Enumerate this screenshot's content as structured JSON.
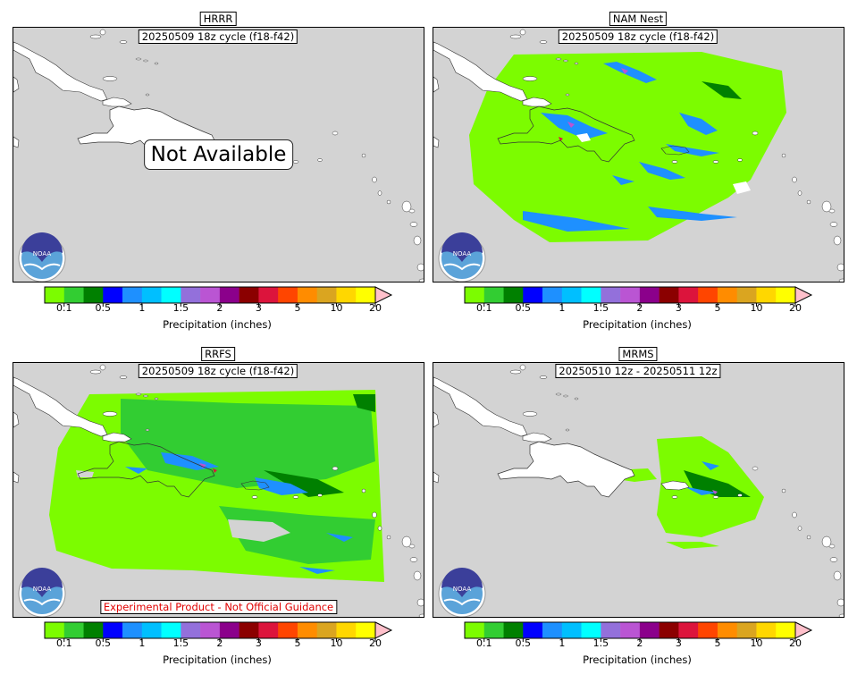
{
  "panels": [
    {
      "id": "hrrr",
      "title": "HRRR",
      "subtitle": "20250509 18z cycle (f18-f42)",
      "available": false,
      "overlay": "Not Available",
      "coverage": "none"
    },
    {
      "id": "namnest",
      "title": "NAM Nest",
      "subtitle": "20250509 18z cycle (f18-f42)",
      "available": true,
      "overlay": "",
      "coverage": "nam"
    },
    {
      "id": "rrfs",
      "title": "RRFS",
      "subtitle": "20250509 18z cycle (f18-f42)",
      "available": true,
      "overlay": "",
      "coverage": "rrfs",
      "disclaimer": "Experimental Product - Not Official Guidance"
    },
    {
      "id": "mrms",
      "title": "MRMS",
      "subtitle": "20250510 12z - 20250511 12z",
      "available": true,
      "overlay": "",
      "coverage": "mrms"
    }
  ],
  "colorbar": {
    "label": "Precipitation (inches)",
    "colors": [
      "#7cfc00",
      "#32cd32",
      "#008000",
      "#0000ff",
      "#1e90ff",
      "#00bfff",
      "#00ffff",
      "#9370db",
      "#ba55d3",
      "#8b008b",
      "#8b0000",
      "#dc143c",
      "#ff4500",
      "#ff8c00",
      "#daa520",
      "#ffd700",
      "#ffff00"
    ],
    "extend_color": "#ffc0cb",
    "tick_labels": [
      "0.1",
      "0.5",
      "1",
      "1.5",
      "2",
      "3",
      "5",
      "10",
      "20"
    ]
  },
  "logo": {
    "text": "NOAA",
    "icon": "noaa-logo-icon"
  },
  "ocean_color": "#d3d3d3",
  "land_color": "#ffffff"
}
